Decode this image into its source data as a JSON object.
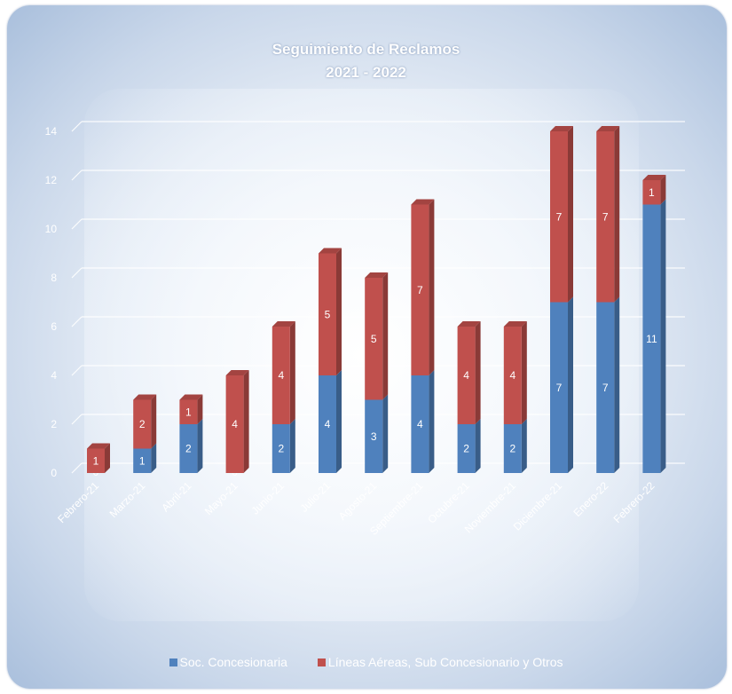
{
  "chart_data": {
    "type": "bar",
    "stacked": true,
    "title_line1": "Seguimiento de Reclamos",
    "title_line2": "2021 - 2022",
    "categories": [
      "Febrero-21",
      "Marzo-21",
      "Abril-21",
      "Mayo-21",
      "Junio-21",
      "Julio-21",
      "Agosto-21",
      "Septiembre-21",
      "Octubre-21",
      "Noviembre-21",
      "Diciembre-21",
      "Enero-22",
      "Febrero-22"
    ],
    "series": [
      {
        "name": "Soc. Concesionaria",
        "color": "#4f81bd",
        "values": [
          0,
          1,
          2,
          0,
          2,
          4,
          3,
          4,
          2,
          2,
          7,
          7,
          11
        ]
      },
      {
        "name": "Líneas Aéreas, Sub Concesionario y Otros",
        "color": "#c0504d",
        "values": [
          1,
          2,
          1,
          4,
          4,
          5,
          5,
          7,
          4,
          4,
          7,
          7,
          1
        ]
      }
    ],
    "ylim": [
      0,
      14
    ],
    "yticks": [
      "0",
      "2",
      "4",
      "6",
      "8",
      "10",
      "12",
      "14"
    ],
    "grid": true,
    "legend_position": "bottom"
  }
}
